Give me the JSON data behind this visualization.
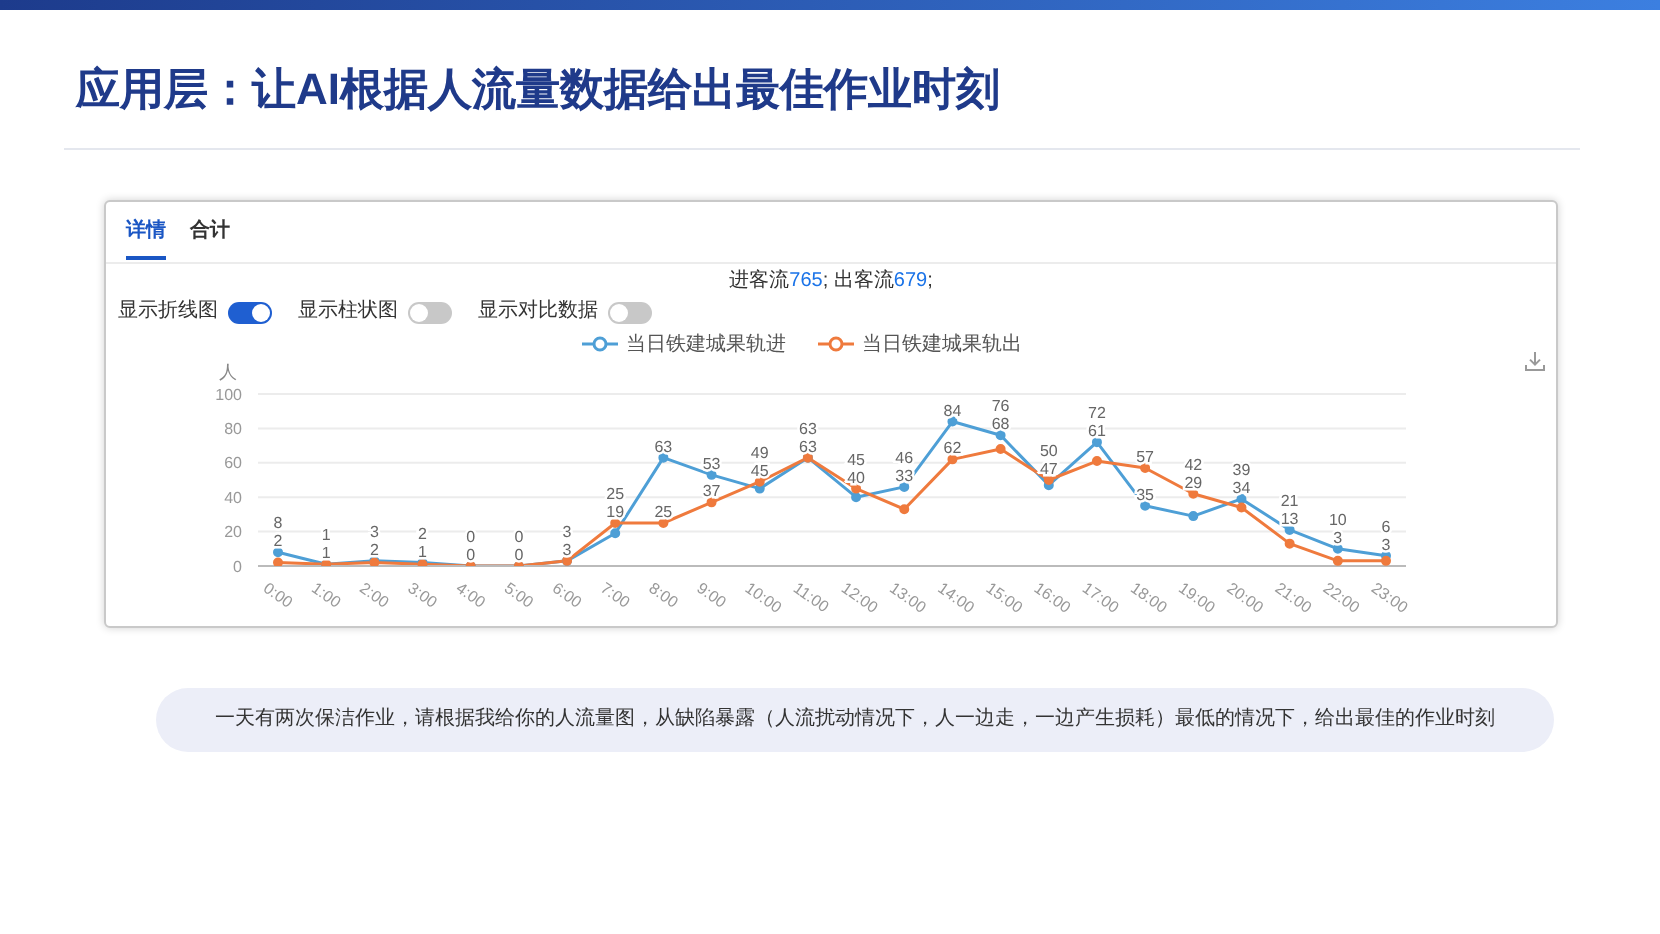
{
  "chart_data": {
    "type": "line",
    "title": "应用层：让AI根据人流量数据给出最佳作业时刻",
    "subtitle": "进客流765; 出客流679;",
    "ylabel": "人",
    "categories": [
      "0:00",
      "1:00",
      "2:00",
      "3:00",
      "4:00",
      "5:00",
      "6:00",
      "7:00",
      "8:00",
      "9:00",
      "10:00",
      "11:00",
      "12:00",
      "13:00",
      "14:00",
      "15:00",
      "16:00",
      "17:00",
      "18:00",
      "19:00",
      "20:00",
      "21:00",
      "22:00",
      "23:00"
    ],
    "series": [
      {
        "name": "当日铁建城果轨进",
        "color": "#4e9fd6",
        "values": [
          8,
          1,
          3,
          2,
          0,
          0,
          3,
          19,
          63,
          53,
          45,
          63,
          40,
          46,
          84,
          76,
          47,
          72,
          35,
          29,
          39,
          21,
          10,
          6
        ]
      },
      {
        "name": "当日铁建城果轨出",
        "color": "#ef7a3d",
        "values": [
          2,
          1,
          2,
          1,
          0,
          0,
          3,
          25,
          25,
          37,
          49,
          63,
          45,
          33,
          62,
          68,
          50,
          61,
          57,
          42,
          34,
          13,
          3,
          3
        ]
      }
    ],
    "ylim": [
      0,
      100
    ],
    "yticks": [
      0,
      20,
      40,
      60,
      80,
      100
    ],
    "grid": "y",
    "legend": "top",
    "marker": "circle",
    "line_style": "solid",
    "data_labels": true,
    "annotations": [
      "详情",
      "合计",
      "显示折线图",
      "显示柱状图",
      "显示对比数据",
      "一天有两次保洁作业，请根据我给你的人流量图，从缺陷暴露（人流扰动情况下，人一边走，一边产生损耗）最低的情况下，给出最佳的作业时刻"
    ]
  }
}
